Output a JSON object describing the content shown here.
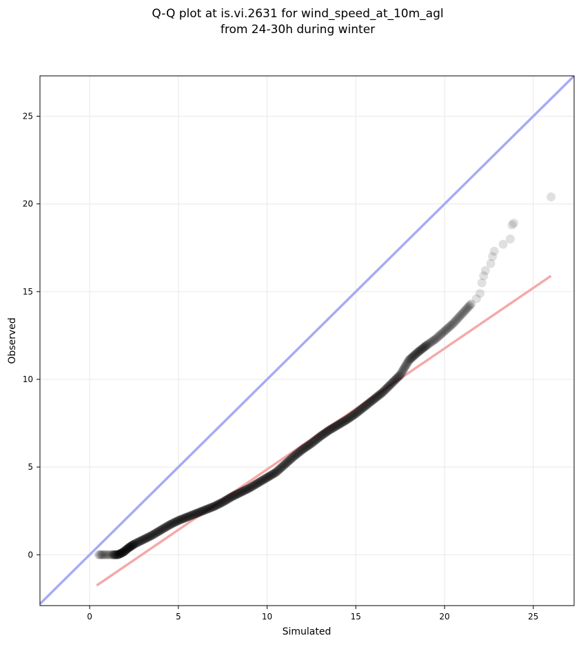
{
  "chart_data": {
    "type": "scatter",
    "title_line1": "Q-Q plot at is.vi.2631 for wind_speed_at_10m_agl",
    "title_line2": "from 24-30h during winter",
    "xlabel": "Simulated",
    "ylabel": "Observed",
    "xlim": [
      -2.8,
      27.3
    ],
    "ylim": [
      -2.9,
      27.3
    ],
    "xticks": [
      0,
      5,
      10,
      15,
      20,
      25
    ],
    "yticks": [
      0,
      5,
      10,
      15,
      20,
      25
    ],
    "xtick_labels": [
      "0",
      "5",
      "10",
      "15",
      "20",
      "25"
    ],
    "ytick_labels": [
      "0",
      "5",
      "10",
      "15",
      "20",
      "25"
    ],
    "grid": true,
    "colors": {
      "points": "#000000",
      "identity_line": "#a9a9f5",
      "fit_line": "#f5a9a9",
      "grid": "#ebebeb"
    },
    "identity_line": {
      "x": [
        -2.8,
        27.3
      ],
      "y": [
        -2.8,
        27.3
      ]
    },
    "fit_line": {
      "x": [
        0.4,
        26.0
      ],
      "y": [
        -1.75,
        15.9
      ]
    },
    "quantile_curve": {
      "x": [
        0.5,
        0.8,
        1.2,
        1.6,
        1.9,
        2.2,
        2.5,
        3.0,
        3.5,
        4.0,
        4.5,
        5.0,
        5.5,
        6.0,
        6.5,
        7.0,
        7.5,
        8.0,
        8.5,
        9.0,
        9.5,
        10.0,
        10.5,
        11.0,
        11.5,
        12.0,
        12.5,
        13.0,
        13.5,
        14.0,
        14.5,
        15.0,
        15.5,
        16.0,
        16.5,
        17.0,
        17.5,
        18.0,
        18.5,
        19.0,
        19.5,
        20.0,
        20.5,
        21.0,
        21.5
      ],
      "y": [
        0.0,
        0.0,
        0.0,
        0.0,
        0.15,
        0.4,
        0.6,
        0.85,
        1.1,
        1.4,
        1.7,
        1.95,
        2.15,
        2.35,
        2.55,
        2.75,
        3.0,
        3.3,
        3.55,
        3.8,
        4.1,
        4.4,
        4.7,
        5.15,
        5.6,
        6.0,
        6.35,
        6.75,
        7.1,
        7.4,
        7.7,
        8.05,
        8.45,
        8.85,
        9.25,
        9.75,
        10.25,
        11.1,
        11.55,
        11.95,
        12.3,
        12.75,
        13.2,
        13.75,
        14.3
      ]
    },
    "tail_points": [
      {
        "x": 21.8,
        "y": 14.6
      },
      {
        "x": 22.0,
        "y": 14.9
      },
      {
        "x": 22.1,
        "y": 15.5
      },
      {
        "x": 22.2,
        "y": 15.9
      },
      {
        "x": 22.3,
        "y": 16.2
      },
      {
        "x": 22.6,
        "y": 16.6
      },
      {
        "x": 22.7,
        "y": 17.0
      },
      {
        "x": 22.8,
        "y": 17.3
      },
      {
        "x": 23.3,
        "y": 17.7
      },
      {
        "x": 23.7,
        "y": 18.0
      },
      {
        "x": 23.8,
        "y": 18.8
      },
      {
        "x": 23.9,
        "y": 18.9
      },
      {
        "x": 26.0,
        "y": 20.4
      }
    ]
  }
}
